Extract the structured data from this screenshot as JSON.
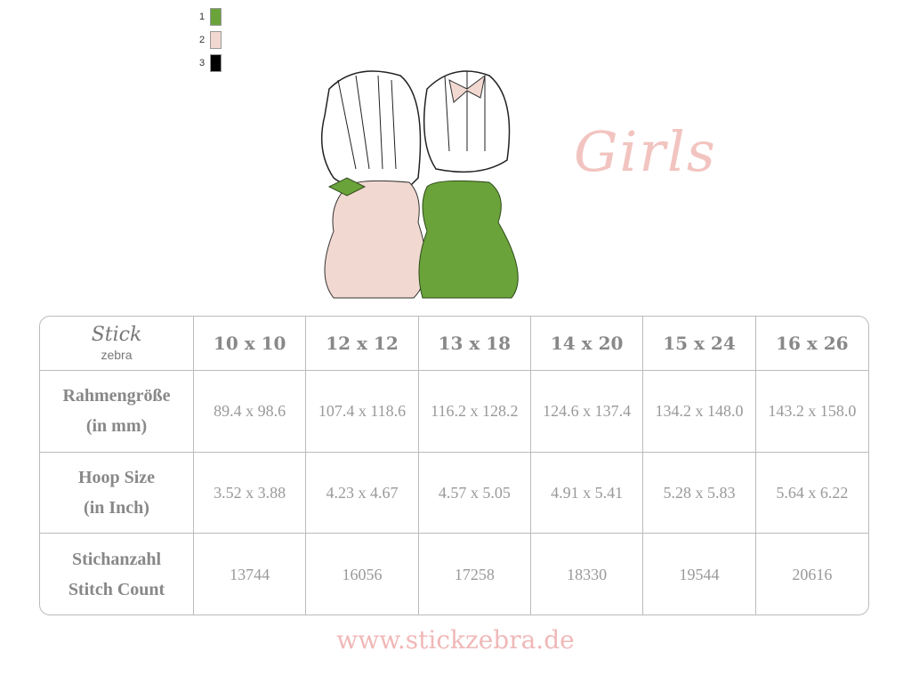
{
  "swatches": [
    {
      "num": "1",
      "color": "#6aa33a"
    },
    {
      "num": "2",
      "color": "#f1d8d0"
    },
    {
      "num": "3",
      "color": "#000000"
    }
  ],
  "title": "Girls",
  "logo": {
    "line1": "Stick",
    "line2": "zebra"
  },
  "table": {
    "columns": [
      "10 x 10",
      "12 x 12",
      "13 x 18",
      "14 x 20",
      "15 x 24",
      "16 x 26"
    ],
    "rows": [
      {
        "label1": "Rahmengröße",
        "label2": "(in mm)",
        "values": [
          "89.4 x 98.6",
          "107.4 x 118.6",
          "116.2 x 128.2",
          "124.6 x 137.4",
          "134.2 x 148.0",
          "143.2 x 158.0"
        ]
      },
      {
        "label1": "Hoop Size",
        "label2": "(in Inch)",
        "values": [
          "3.52 x 3.88",
          "4.23 x 4.67",
          "4.57 x 5.05",
          "4.91 x 5.41",
          "5.28 x 5.83",
          "5.64 x 6.22"
        ]
      },
      {
        "label1": "Stichanzahl",
        "label2": "Stitch Count",
        "values": [
          "13744",
          "16056",
          "17258",
          "18330",
          "19544",
          "20616"
        ]
      }
    ]
  },
  "footer": "www.stickzebra.de"
}
